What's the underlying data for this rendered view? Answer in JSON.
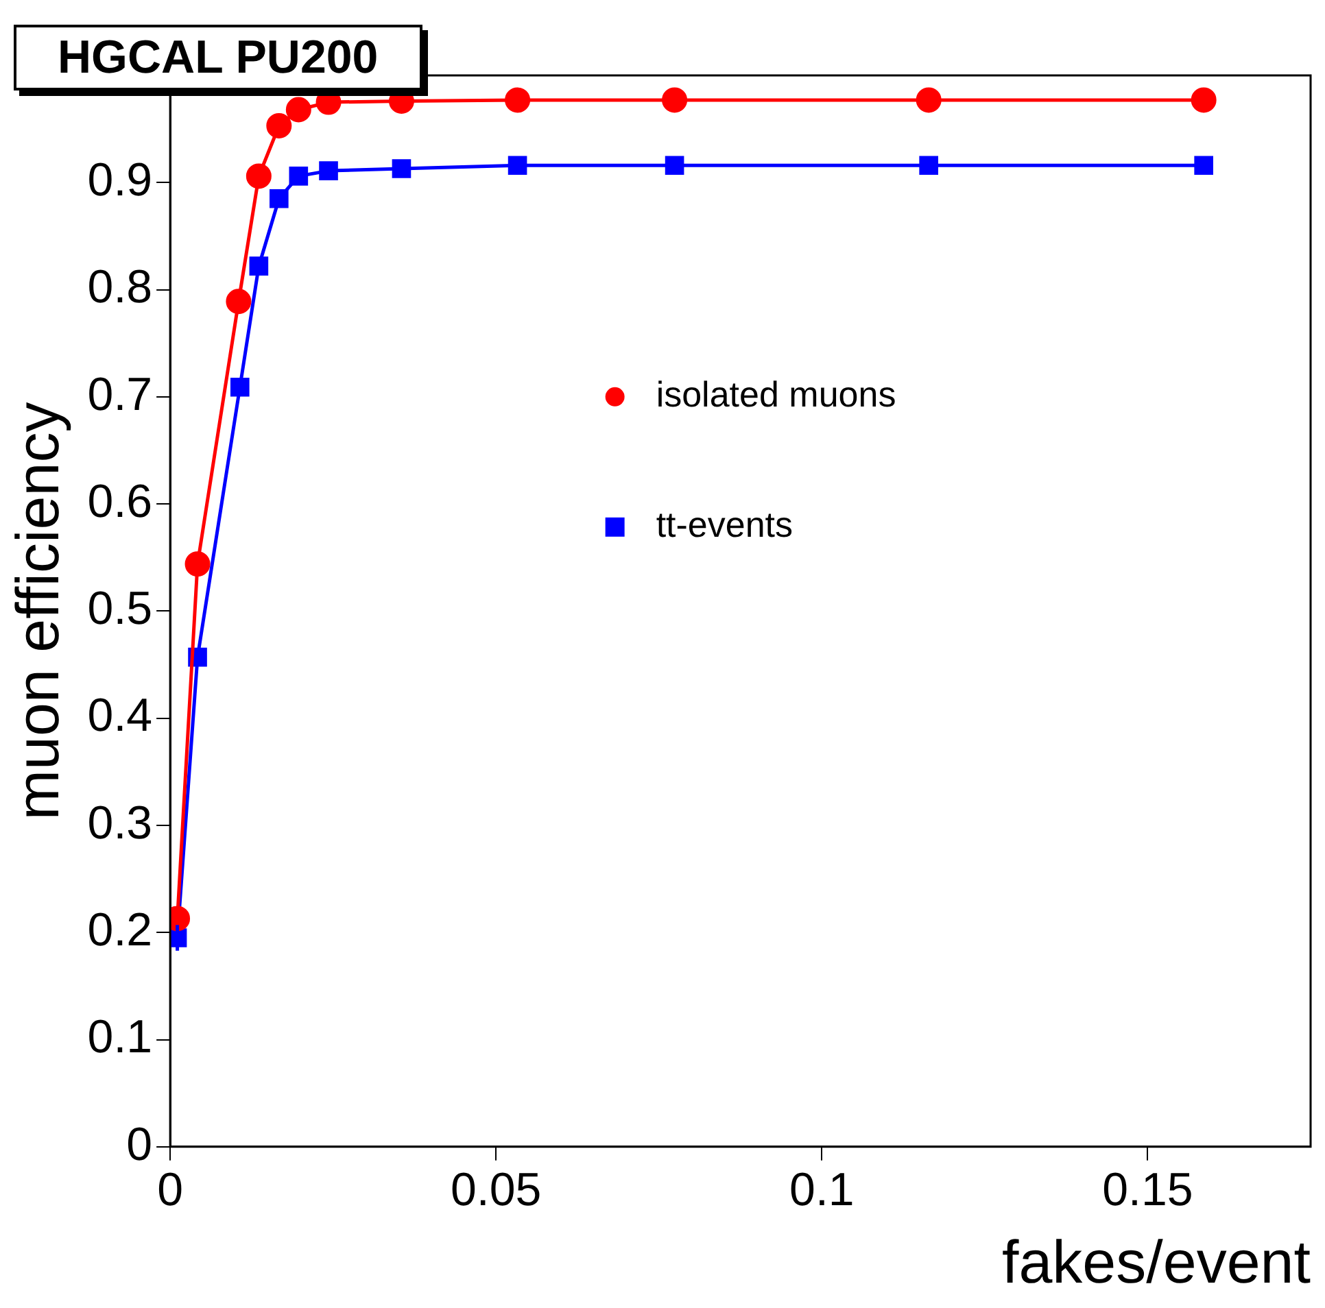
{
  "chart_data": {
    "type": "line",
    "title": "HGCAL PU200",
    "xlabel": "fakes/event",
    "ylabel": "muon efficiency",
    "xlim": [
      0,
      0.175
    ],
    "xticks": [
      0,
      0.05,
      0.1,
      0.15
    ],
    "ylim": [
      0,
      1
    ],
    "yticks": [
      0,
      0.1,
      0.2,
      0.3,
      0.4,
      0.5,
      0.6,
      0.7,
      0.8,
      0.9
    ],
    "grid": false,
    "legend": "right",
    "series": [
      {
        "name": "isolated muons",
        "color": "#ff0000",
        "marker": "circle",
        "x": [
          0.0011,
          0.0042,
          0.0105,
          0.0136,
          0.0167,
          0.0197,
          0.0243,
          0.0355,
          0.0533,
          0.0774,
          0.1164,
          0.1586
        ],
        "values": [
          0.213,
          0.544,
          0.789,
          0.906,
          0.953,
          0.968,
          0.975,
          0.976,
          0.977,
          0.977,
          0.977,
          0.977
        ]
      },
      {
        "name": "tt-events",
        "color": "#0000ff",
        "marker": "square",
        "x": [
          0.0011,
          0.0042,
          0.0107,
          0.0136,
          0.0167,
          0.0197,
          0.0243,
          0.0355,
          0.0533,
          0.0774,
          0.1164,
          0.1586
        ],
        "values": [
          0.195,
          0.457,
          0.709,
          0.822,
          0.885,
          0.906,
          0.911,
          0.913,
          0.916,
          0.916,
          0.916,
          0.916
        ],
        "errors": [
          0.012,
          null,
          null,
          null,
          null,
          null,
          null,
          null,
          null,
          null,
          null,
          null
        ]
      }
    ]
  }
}
